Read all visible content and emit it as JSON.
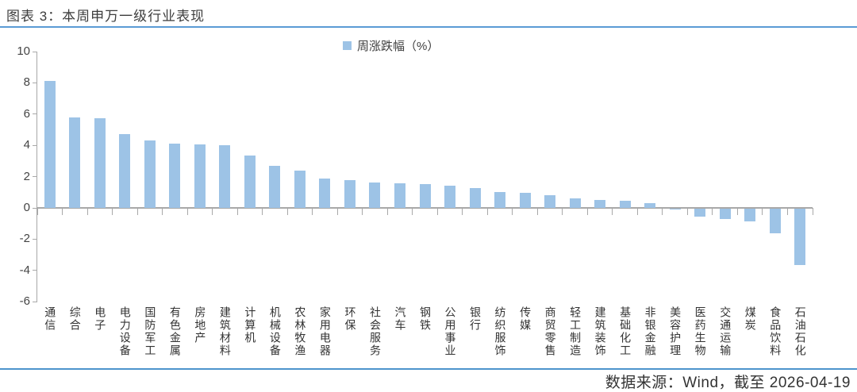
{
  "page": {
    "title": "图表 3：本周申万一级行业表现",
    "footer_source": "数据来源：Wind，截至 2026-04-19"
  },
  "legend": {
    "label": "周涨跌幅（%）"
  },
  "colors": {
    "bar": "#9DC3E6",
    "divider_top": "#5B9BD5",
    "divider_bottom": "#4D94CC",
    "axis": "#A8A8A8",
    "text": "#3d3d3d"
  },
  "chart_data": {
    "type": "bar",
    "title": "图表 3：本周申万一级行业表现",
    "legend": [
      "周涨跌幅（%）"
    ],
    "legend_position": "top-center",
    "xlabel": "",
    "ylabel": "",
    "ylim": [
      -6,
      10
    ],
    "yticks": [
      10,
      8,
      6,
      4,
      2,
      0,
      -2,
      -4,
      -6
    ],
    "grid": false,
    "categories": [
      "通信",
      "综合",
      "电子",
      "电力设备",
      "国防军工",
      "有色金属",
      "房地产",
      "建筑材料",
      "计算机",
      "机械设备",
      "农林牧渔",
      "家用电器",
      "环保",
      "社会服务",
      "汽车",
      "钢铁",
      "公用事业",
      "银行",
      "纺织服饰",
      "传媒",
      "商贸零售",
      "轻工制造",
      "建筑装饰",
      "基础化工",
      "非银金融",
      "美容护理",
      "医药生物",
      "交通运输",
      "煤炭",
      "食品饮料",
      "石油石化"
    ],
    "values": [
      8.1,
      5.8,
      5.75,
      4.7,
      4.3,
      4.1,
      4.05,
      4.0,
      3.35,
      2.7,
      2.4,
      1.9,
      1.8,
      1.6,
      1.55,
      1.5,
      1.4,
      1.25,
      1.0,
      0.95,
      0.8,
      0.6,
      0.5,
      0.45,
      0.3,
      -0.05,
      -0.55,
      -0.7,
      -0.85,
      -1.6,
      -3.65
    ],
    "source_note": "数据来源：Wind，截至 2026-04-19"
  }
}
